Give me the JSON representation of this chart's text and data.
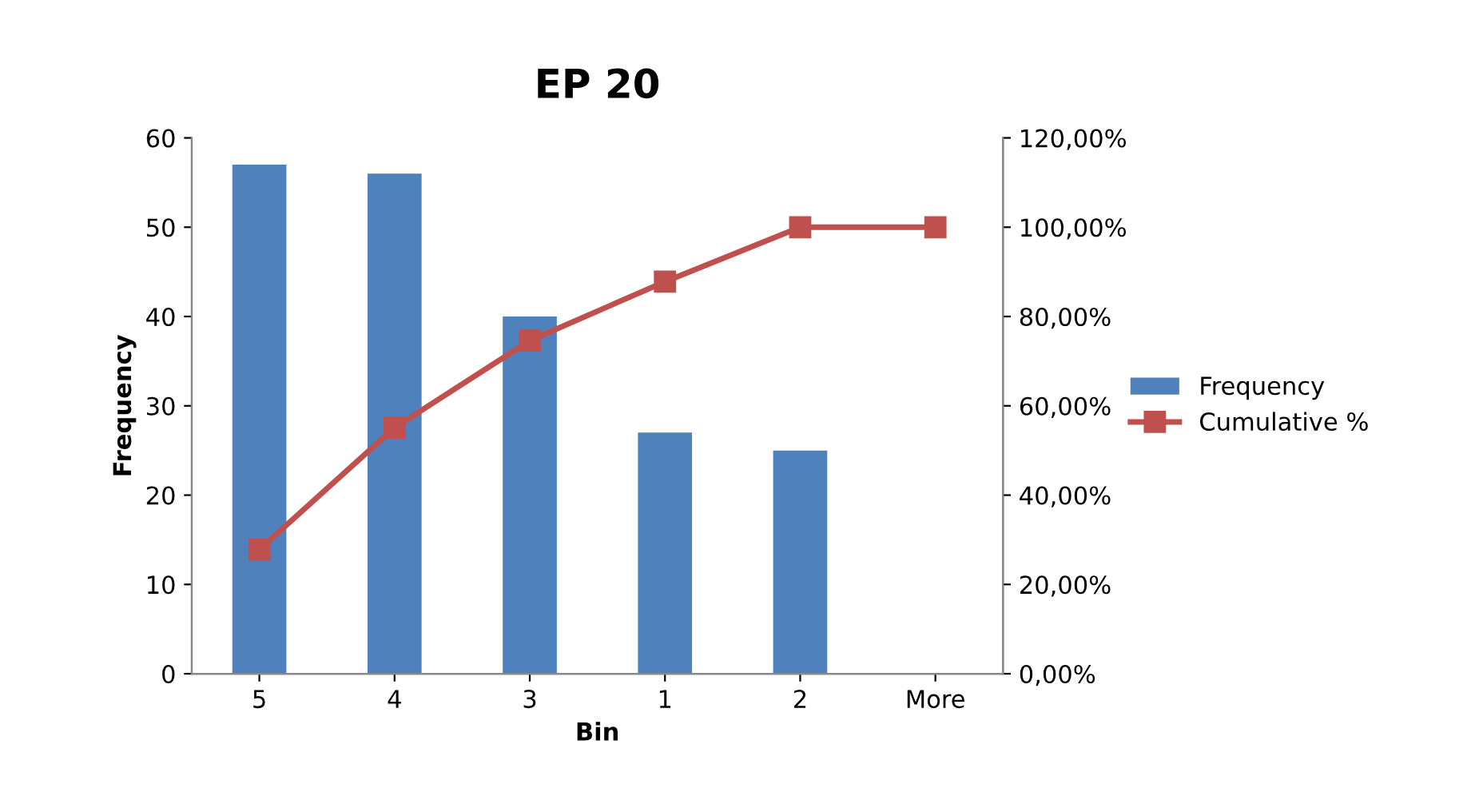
{
  "chart_data": {
    "type": "bar",
    "title": "EP 20",
    "xlabel": "Bin",
    "ylabel": "Frequency",
    "categories": [
      "5",
      "4",
      "3",
      "1",
      "2",
      "More"
    ],
    "series": [
      {
        "name": "Frequency",
        "color": "#4f81bd",
        "values": [
          57,
          56,
          40,
          27,
          25,
          0
        ]
      },
      {
        "name": "Cumulative %",
        "type": "line",
        "axis": "y2",
        "color": "#c0504d",
        "marker": "square",
        "values": [
          27.8,
          55.1,
          74.6,
          87.8,
          100,
          100
        ]
      }
    ],
    "ylim": [
      0,
      60
    ],
    "yticks": [
      0,
      10,
      20,
      30,
      40,
      50,
      60
    ],
    "y2lim": [
      0,
      120
    ],
    "y2ticks": [
      {
        "value": 0,
        "label": "0,00%"
      },
      {
        "value": 20,
        "label": "20,00%"
      },
      {
        "value": 40,
        "label": "40,00%"
      },
      {
        "value": 60,
        "label": "60,00%"
      },
      {
        "value": 80,
        "label": "80,00%"
      },
      {
        "value": 100,
        "label": "100,00%"
      },
      {
        "value": 120,
        "label": "120,00%"
      }
    ],
    "legend": "right",
    "grid": false
  }
}
